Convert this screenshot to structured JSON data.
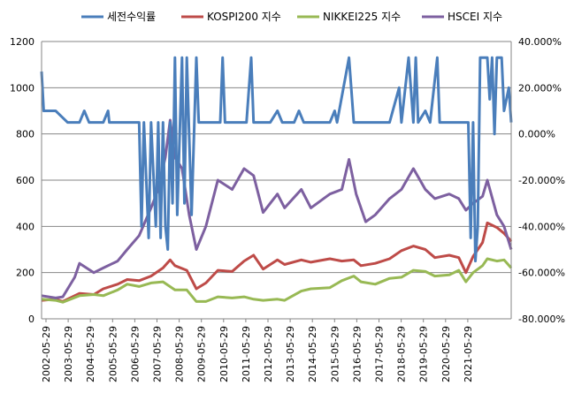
{
  "chart_data": {
    "type": "line",
    "legend": {
      "position": "top",
      "items": [
        {
          "label": "세전수익률",
          "color": "#4a7ebb",
          "axis": "right"
        },
        {
          "label": "KOSPI200 지수",
          "color": "#be4b48",
          "axis": "left"
        },
        {
          "label": "NIKKEI225 지수",
          "color": "#98b954",
          "axis": "left"
        },
        {
          "label": "HSCEI 지수",
          "color": "#7d60a0",
          "axis": "left"
        }
      ]
    },
    "y_left": {
      "min": 0,
      "max": 1200,
      "ticks": [
        "0",
        "200",
        "400",
        "600",
        "800",
        "1000",
        "1200"
      ]
    },
    "y_right": {
      "min": -80,
      "max": 40,
      "ticks": [
        "-80.000%",
        "-60.000%",
        "-40.000%",
        "-20.000%",
        "0.000%",
        "20.000%",
        "40.000%"
      ]
    },
    "x_ticks": [
      "2002-05-29",
      "2003-05-29",
      "2004-05-29",
      "2005-05-29",
      "2006-05-29",
      "2007-05-29",
      "2008-05-29",
      "2009-05-29",
      "2010-05-29",
      "2011-05-29",
      "2012-05-29",
      "2013-05-29",
      "2014-05-29",
      "2015-05-29",
      "2016-05-29",
      "2017-05-29",
      "2018-05-29",
      "2019-05-29",
      "2020-05-29",
      "2021-05-29"
    ],
    "x_range": [
      2002.41,
      2022.1
    ],
    "grid": "horizontal",
    "series": [
      {
        "name": "KOSPI200 지수",
        "axis": "left",
        "points": [
          [
            2002.41,
            80
          ],
          [
            2003.0,
            85
          ],
          [
            2003.3,
            75
          ],
          [
            2004.0,
            110
          ],
          [
            2004.6,
            105
          ],
          [
            2005.0,
            130
          ],
          [
            2005.6,
            150
          ],
          [
            2006.0,
            170
          ],
          [
            2006.5,
            165
          ],
          [
            2007.0,
            185
          ],
          [
            2007.5,
            220
          ],
          [
            2007.8,
            255
          ],
          [
            2008.0,
            230
          ],
          [
            2008.5,
            210
          ],
          [
            2008.9,
            130
          ],
          [
            2009.3,
            155
          ],
          [
            2009.8,
            210
          ],
          [
            2010.4,
            205
          ],
          [
            2010.9,
            250
          ],
          [
            2011.3,
            275
          ],
          [
            2011.7,
            215
          ],
          [
            2012.3,
            255
          ],
          [
            2012.6,
            235
          ],
          [
            2013.3,
            255
          ],
          [
            2013.7,
            245
          ],
          [
            2014.5,
            260
          ],
          [
            2015.0,
            250
          ],
          [
            2015.5,
            255
          ],
          [
            2015.8,
            230
          ],
          [
            2016.4,
            240
          ],
          [
            2017.0,
            260
          ],
          [
            2017.5,
            295
          ],
          [
            2018.0,
            315
          ],
          [
            2018.5,
            300
          ],
          [
            2018.9,
            265
          ],
          [
            2019.5,
            275
          ],
          [
            2019.9,
            265
          ],
          [
            2020.2,
            200
          ],
          [
            2020.5,
            270
          ],
          [
            2020.9,
            330
          ],
          [
            2021.1,
            415
          ],
          [
            2021.5,
            395
          ],
          [
            2021.8,
            370
          ],
          [
            2022.1,
            335
          ]
        ]
      },
      {
        "name": "NIKKEI225 지수",
        "axis": "left",
        "points": [
          [
            2002.41,
            85
          ],
          [
            2003.0,
            80
          ],
          [
            2003.3,
            72
          ],
          [
            2004.0,
            100
          ],
          [
            2004.6,
            105
          ],
          [
            2005.0,
            100
          ],
          [
            2005.6,
            125
          ],
          [
            2006.0,
            150
          ],
          [
            2006.5,
            140
          ],
          [
            2007.0,
            155
          ],
          [
            2007.5,
            160
          ],
          [
            2008.0,
            125
          ],
          [
            2008.5,
            125
          ],
          [
            2008.9,
            75
          ],
          [
            2009.3,
            75
          ],
          [
            2009.8,
            95
          ],
          [
            2010.4,
            90
          ],
          [
            2010.9,
            95
          ],
          [
            2011.3,
            85
          ],
          [
            2011.7,
            80
          ],
          [
            2012.3,
            85
          ],
          [
            2012.6,
            80
          ],
          [
            2013.3,
            120
          ],
          [
            2013.7,
            130
          ],
          [
            2014.5,
            135
          ],
          [
            2015.0,
            165
          ],
          [
            2015.5,
            185
          ],
          [
            2015.8,
            160
          ],
          [
            2016.4,
            150
          ],
          [
            2017.0,
            175
          ],
          [
            2017.5,
            180
          ],
          [
            2018.0,
            210
          ],
          [
            2018.5,
            205
          ],
          [
            2018.9,
            185
          ],
          [
            2019.5,
            190
          ],
          [
            2019.9,
            210
          ],
          [
            2020.2,
            160
          ],
          [
            2020.5,
            200
          ],
          [
            2020.9,
            230
          ],
          [
            2021.1,
            260
          ],
          [
            2021.5,
            250
          ],
          [
            2021.8,
            255
          ],
          [
            2022.1,
            220
          ]
        ]
      },
      {
        "name": "HSCEI 지수",
        "axis": "left",
        "points": [
          [
            2002.41,
            100
          ],
          [
            2003.0,
            90
          ],
          [
            2003.3,
            95
          ],
          [
            2003.8,
            180
          ],
          [
            2004.0,
            240
          ],
          [
            2004.6,
            200
          ],
          [
            2005.0,
            220
          ],
          [
            2005.6,
            250
          ],
          [
            2006.0,
            300
          ],
          [
            2006.5,
            360
          ],
          [
            2007.0,
            480
          ],
          [
            2007.3,
            560
          ],
          [
            2007.6,
            700
          ],
          [
            2007.8,
            860
          ],
          [
            2008.0,
            700
          ],
          [
            2008.3,
            650
          ],
          [
            2008.6,
            450
          ],
          [
            2008.9,
            300
          ],
          [
            2009.3,
            400
          ],
          [
            2009.8,
            600
          ],
          [
            2010.4,
            560
          ],
          [
            2010.9,
            650
          ],
          [
            2011.3,
            620
          ],
          [
            2011.7,
            460
          ],
          [
            2012.3,
            540
          ],
          [
            2012.6,
            480
          ],
          [
            2013.3,
            560
          ],
          [
            2013.7,
            480
          ],
          [
            2014.5,
            540
          ],
          [
            2015.0,
            560
          ],
          [
            2015.3,
            690
          ],
          [
            2015.6,
            540
          ],
          [
            2016.0,
            420
          ],
          [
            2016.4,
            450
          ],
          [
            2017.0,
            520
          ],
          [
            2017.5,
            560
          ],
          [
            2018.0,
            650
          ],
          [
            2018.5,
            560
          ],
          [
            2018.9,
            520
          ],
          [
            2019.5,
            540
          ],
          [
            2019.9,
            520
          ],
          [
            2020.2,
            470
          ],
          [
            2020.5,
            500
          ],
          [
            2020.9,
            530
          ],
          [
            2021.1,
            600
          ],
          [
            2021.5,
            450
          ],
          [
            2021.8,
            400
          ],
          [
            2022.1,
            300
          ]
        ]
      },
      {
        "name": "세전수익률",
        "axis": "right",
        "points": [
          [
            2002.41,
            27
          ],
          [
            2002.5,
            10
          ],
          [
            2002.7,
            10
          ],
          [
            2003.0,
            10
          ],
          [
            2003.5,
            5
          ],
          [
            2004.0,
            5
          ],
          [
            2004.2,
            10
          ],
          [
            2004.4,
            5
          ],
          [
            2005.0,
            5
          ],
          [
            2005.2,
            10
          ],
          [
            2005.25,
            5
          ],
          [
            2006.0,
            5
          ],
          [
            2006.5,
            5
          ],
          [
            2006.6,
            -40
          ],
          [
            2006.7,
            5
          ],
          [
            2006.9,
            -45
          ],
          [
            2007.0,
            5
          ],
          [
            2007.2,
            -40
          ],
          [
            2007.3,
            5
          ],
          [
            2007.4,
            -45
          ],
          [
            2007.5,
            5
          ],
          [
            2007.6,
            -40
          ],
          [
            2007.7,
            -50
          ],
          [
            2007.8,
            5
          ],
          [
            2007.9,
            -30
          ],
          [
            2008.0,
            33
          ],
          [
            2008.1,
            -35
          ],
          [
            2008.3,
            33
          ],
          [
            2008.4,
            -30
          ],
          [
            2008.5,
            33
          ],
          [
            2008.7,
            -35
          ],
          [
            2008.9,
            33
          ],
          [
            2009.0,
            5
          ],
          [
            2009.5,
            5
          ],
          [
            2009.9,
            5
          ],
          [
            2010.0,
            33
          ],
          [
            2010.1,
            5
          ],
          [
            2011.0,
            5
          ],
          [
            2011.2,
            33
          ],
          [
            2011.3,
            5
          ],
          [
            2012.0,
            5
          ],
          [
            2012.3,
            10
          ],
          [
            2012.5,
            5
          ],
          [
            2013.0,
            5
          ],
          [
            2013.2,
            10
          ],
          [
            2013.4,
            5
          ],
          [
            2014.0,
            5
          ],
          [
            2014.5,
            5
          ],
          [
            2014.7,
            10
          ],
          [
            2014.8,
            5
          ],
          [
            2015.3,
            33
          ],
          [
            2015.5,
            5
          ],
          [
            2016.0,
            5
          ],
          [
            2017.0,
            5
          ],
          [
            2017.4,
            20
          ],
          [
            2017.5,
            5
          ],
          [
            2017.8,
            33
          ],
          [
            2018.0,
            5
          ],
          [
            2018.1,
            33
          ],
          [
            2018.2,
            5
          ],
          [
            2018.5,
            10
          ],
          [
            2018.7,
            5
          ],
          [
            2019.0,
            33
          ],
          [
            2019.1,
            5
          ],
          [
            2019.5,
            5
          ],
          [
            2020.0,
            5
          ],
          [
            2020.3,
            5
          ],
          [
            2020.4,
            -45
          ],
          [
            2020.5,
            5
          ],
          [
            2020.6,
            -55
          ],
          [
            2020.7,
            -40
          ],
          [
            2020.8,
            33
          ],
          [
            2021.0,
            33
          ],
          [
            2021.1,
            33
          ],
          [
            2021.2,
            15
          ],
          [
            2021.3,
            33
          ],
          [
            2021.4,
            0
          ],
          [
            2021.5,
            33
          ],
          [
            2021.7,
            33
          ],
          [
            2021.8,
            10
          ],
          [
            2022.0,
            20
          ],
          [
            2022.1,
            5
          ]
        ]
      }
    ]
  }
}
